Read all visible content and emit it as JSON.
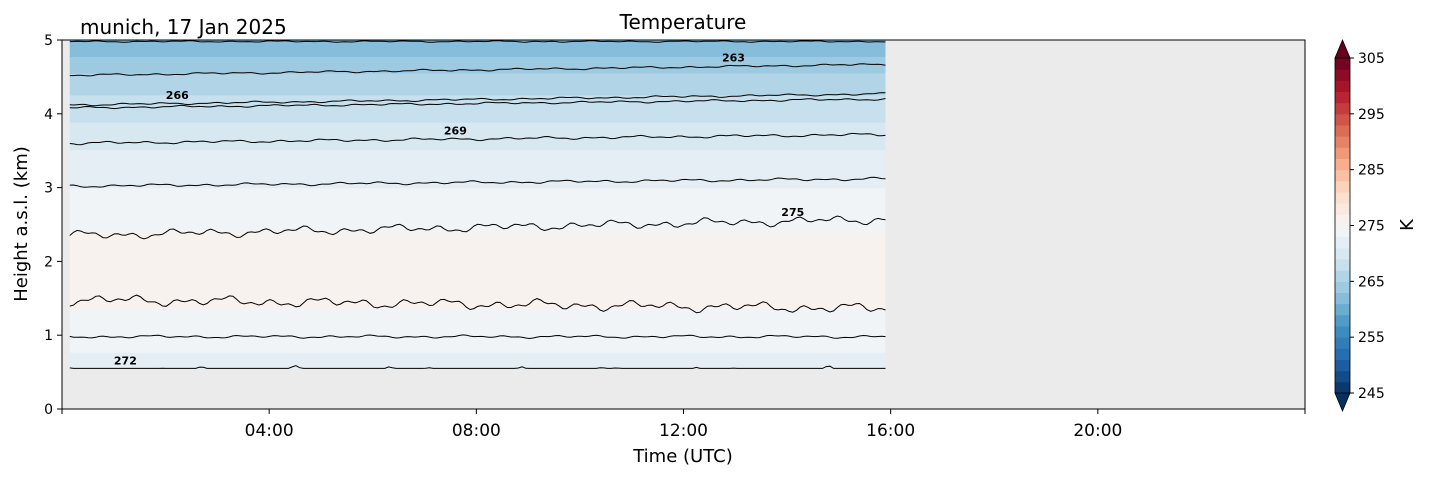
{
  "chart_data": {
    "type": "heatmap",
    "title": "Temperature",
    "subtitle": "munich, 17 Jan 2025",
    "xlabel": "Time (UTC)",
    "ylabel": "Height a.s.l. (km)",
    "xlim_hours": [
      0,
      24
    ],
    "ylim_km": [
      0,
      5
    ],
    "x_ticks": [
      {
        "value": 4,
        "label": "04:00"
      },
      {
        "value": 8,
        "label": "08:00"
      },
      {
        "value": 12,
        "label": "12:00"
      },
      {
        "value": 16,
        "label": "16:00"
      },
      {
        "value": 20,
        "label": "20:00"
      }
    ],
    "y_ticks": [
      {
        "value": 0,
        "label": "0"
      },
      {
        "value": 1,
        "label": "1"
      },
      {
        "value": 2,
        "label": "2"
      },
      {
        "value": 3,
        "label": "3"
      },
      {
        "value": 4,
        "label": "4"
      },
      {
        "value": 5,
        "label": "5"
      }
    ],
    "data_extent": {
      "time_hours": [
        0.15,
        15.9
      ],
      "height_km": [
        0.55,
        5.0
      ]
    },
    "no_data_color": "#ebebeb",
    "colormap": "RdBu_r",
    "colorbar": {
      "label": "K",
      "vmin": 245,
      "vmax": 305,
      "step": 2,
      "extend": "both",
      "ticks": [
        {
          "value": 245,
          "label": "245"
        },
        {
          "value": 255,
          "label": "255"
        },
        {
          "value": 265,
          "label": "265"
        },
        {
          "value": 275,
          "label": "275"
        },
        {
          "value": 285,
          "label": "285"
        },
        {
          "value": 295,
          "label": "295"
        },
        {
          "value": 305,
          "label": "305"
        }
      ]
    },
    "temperature_profile": [
      {
        "height_km": 0.55,
        "temp_k": 272.6
      },
      {
        "height_km": 1.0,
        "temp_k": 273.5
      },
      {
        "height_km": 1.4,
        "temp_k": 275.0
      },
      {
        "height_km": 1.9,
        "temp_k": 275.8
      },
      {
        "height_km": 2.4,
        "temp_k": 275.0
      },
      {
        "height_km": 3.0,
        "temp_k": 273.0
      },
      {
        "height_km": 3.6,
        "temp_k": 270.5
      },
      {
        "height_km": 4.1,
        "temp_k": 268.0
      },
      {
        "height_km": 4.6,
        "temp_k": 264.5
      },
      {
        "height_km": 5.0,
        "temp_k": 261.5
      }
    ],
    "contours": [
      {
        "level": "272",
        "base_km": 0.5,
        "slope": 0.0,
        "noise": 0.07,
        "label_at_hours": 1.2
      },
      {
        "level": "",
        "base_km": 0.98,
        "slope": 0.0,
        "noise": 0.02,
        "label_at_hours": null
      },
      {
        "level": "",
        "base_km": 1.48,
        "slope": -0.12,
        "noise": 0.07,
        "label_at_hours": null
      },
      {
        "level": "275",
        "base_km": 2.35,
        "slope": 0.22,
        "noise": 0.06,
        "label_at_hours": 14.1
      },
      {
        "level": "",
        "base_km": 3.02,
        "slope": 0.1,
        "noise": 0.02,
        "label_at_hours": null
      },
      {
        "level": "269",
        "base_km": 3.6,
        "slope": 0.12,
        "noise": 0.02,
        "label_at_hours": 7.6
      },
      {
        "level": "",
        "base_km": 4.08,
        "slope": 0.12,
        "noise": 0.015,
        "label_at_hours": null
      },
      {
        "level": "266",
        "base_km": 4.12,
        "slope": 0.15,
        "noise": 0.015,
        "label_at_hours": 2.2
      },
      {
        "level": "263",
        "base_km": 4.52,
        "slope": 0.15,
        "noise": 0.015,
        "label_at_hours": 13.0
      },
      {
        "level": "",
        "base_km": 4.98,
        "slope": 0.0,
        "noise": 0.01,
        "label_at_hours": null
      }
    ]
  }
}
